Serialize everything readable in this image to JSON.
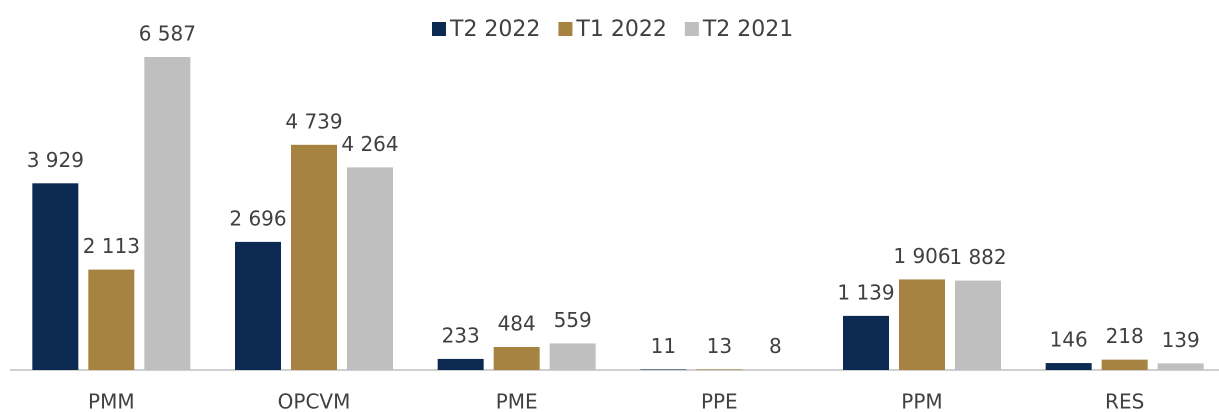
{
  "chart_data": {
    "type": "bar",
    "categories": [
      "PMM",
      "OPCVM",
      "PME",
      "PPE",
      "PPM",
      "RES"
    ],
    "series": [
      {
        "name": "T2 2022",
        "color": "#0c2a52",
        "values": [
          3929,
          2696,
          233,
          11,
          1139,
          146
        ],
        "value_labels": [
          "3 929",
          "2 696",
          "233",
          "11",
          "1 139",
          "146"
        ]
      },
      {
        "name": "T1 2022",
        "color": "#a68340",
        "values": [
          2113,
          4739,
          484,
          13,
          1906,
          218
        ],
        "value_labels": [
          "2 113",
          "4 739",
          "484",
          "13",
          "1 906",
          "218"
        ]
      },
      {
        "name": "T2 2021",
        "color": "#bfbfbf",
        "values": [
          6587,
          4264,
          559,
          8,
          1882,
          139
        ],
        "value_labels": [
          "6 587",
          "4 264",
          "559",
          "8",
          "1 882",
          "139"
        ]
      }
    ],
    "legend": "top"
  }
}
